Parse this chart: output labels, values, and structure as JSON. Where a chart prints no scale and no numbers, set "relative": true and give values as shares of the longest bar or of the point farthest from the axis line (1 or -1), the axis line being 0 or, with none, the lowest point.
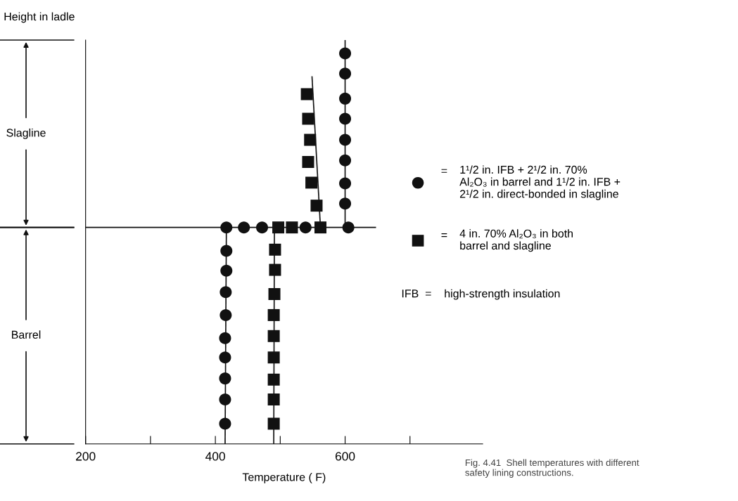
{
  "chart_data": {
    "type": "scatter",
    "relative": true,
    "ylabel": "Height in ladle",
    "xlabel": "Temperature ( F)",
    "xlim": [
      200,
      812
    ],
    "xticks": [
      200,
      {
        "value": 300,
        "label": null
      },
      400,
      {
        "value": 500,
        "label": null
      },
      600,
      {
        "value": 700,
        "label": null
      }
    ],
    "grid": false,
    "legend": "right",
    "series": [
      {
        "name": "1¹/2 in. IFB + 2¹/2 in. 70%\nAl₂O₃ in barrel and 1¹/2 in. IFB +\n2¹/2 in. direct-bonded in slagline",
        "color": "#111111",
        "marker": "circle",
        "x": [
          415,
          415,
          415,
          415,
          415,
          416,
          416,
          417,
          417,
          417,
          444,
          472,
          539,
          605,
          600,
          600,
          600,
          600,
          600,
          600,
          600,
          600
        ],
        "values": [
          0.05,
          0.11,
          0.162,
          0.214,
          0.262,
          0.319,
          0.376,
          0.429,
          0.478,
          0.536,
          0.536,
          0.536,
          0.536,
          0.536,
          0.595,
          0.645,
          0.702,
          0.753,
          0.805,
          0.855,
          0.917,
          0.967
        ]
      },
      {
        "name": "4 in. 70% Al₂O₃ in both\nbarrel and slagline",
        "color": "#111111",
        "marker": "square",
        "x": [
          490,
          490,
          490,
          490,
          490,
          490,
          491,
          492,
          492,
          497,
          518,
          562,
          556,
          548,
          543,
          546,
          543,
          541
        ],
        "values": [
          0.05,
          0.11,
          0.159,
          0.214,
          0.267,
          0.319,
          0.371,
          0.431,
          0.481,
          0.536,
          0.536,
          0.536,
          0.59,
          0.647,
          0.698,
          0.753,
          0.805,
          0.866
        ]
      },
      {
        "type": "line",
        "color": "#111111",
        "x": [
          415,
          417
        ],
        "values": [
          0,
          0.536
        ]
      },
      {
        "type": "line",
        "color": "#111111",
        "x": [
          600,
          600
        ],
        "values": [
          0.536,
          1.0
        ]
      },
      {
        "type": "line",
        "color": "#111111",
        "x": [
          490,
          491
        ],
        "values": [
          0,
          0.536
        ]
      },
      {
        "type": "line",
        "color": "#111111",
        "x": [
          562,
          549
        ],
        "values": [
          0.536,
          0.909
        ]
      }
    ],
    "ref_lines": [
      {
        "axis": "y",
        "value": 0.536
      }
    ],
    "annotations": [
      "=",
      "=",
      "IFB  =    high-strength insulation",
      "Fig. 4.41  Shell temperatures with different\nsafety lining constructions.",
      "Slagline",
      "Barrel"
    ]
  }
}
